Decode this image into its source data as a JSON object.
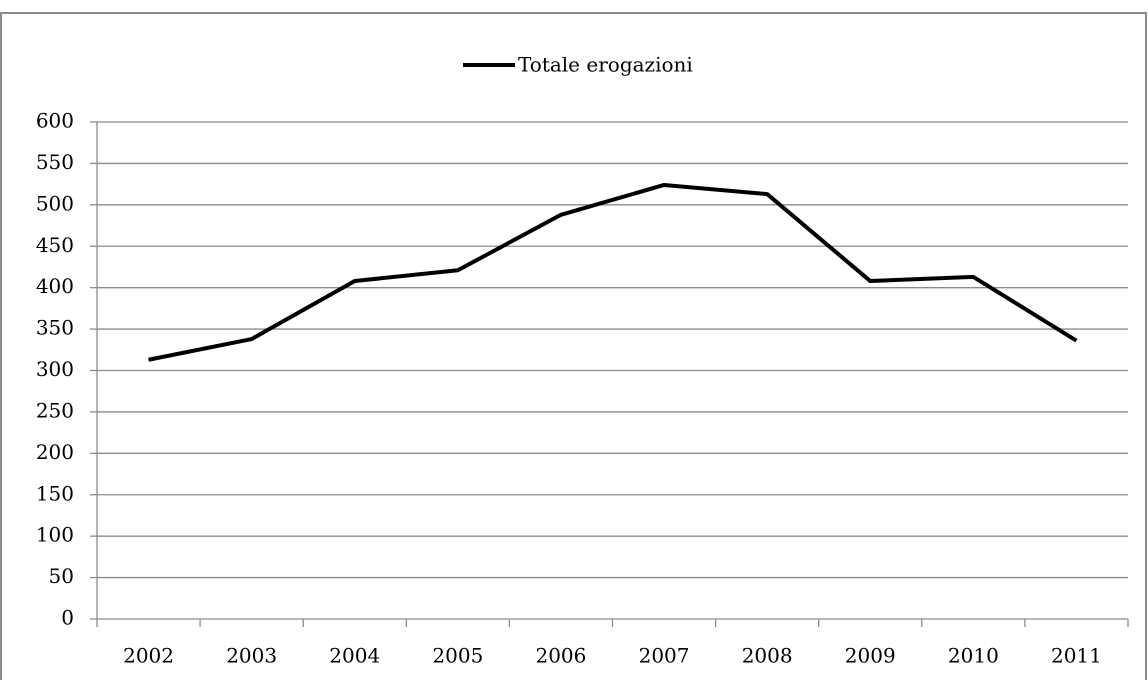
{
  "chart_data": {
    "type": "line",
    "categories": [
      "2002",
      "2003",
      "2004",
      "2005",
      "2006",
      "2007",
      "2008",
      "2009",
      "2010",
      "2011"
    ],
    "series": [
      {
        "name": "Totale erogazioni",
        "color": "#000000",
        "values": [
          313,
          338,
          408,
          421,
          488,
          524,
          513,
          408,
          413,
          336
        ]
      }
    ],
    "ylim": [
      0,
      600
    ],
    "yticks": [
      0,
      50,
      100,
      150,
      200,
      250,
      300,
      350,
      400,
      450,
      500,
      550,
      600
    ],
    "grid": true,
    "legend": "top"
  }
}
